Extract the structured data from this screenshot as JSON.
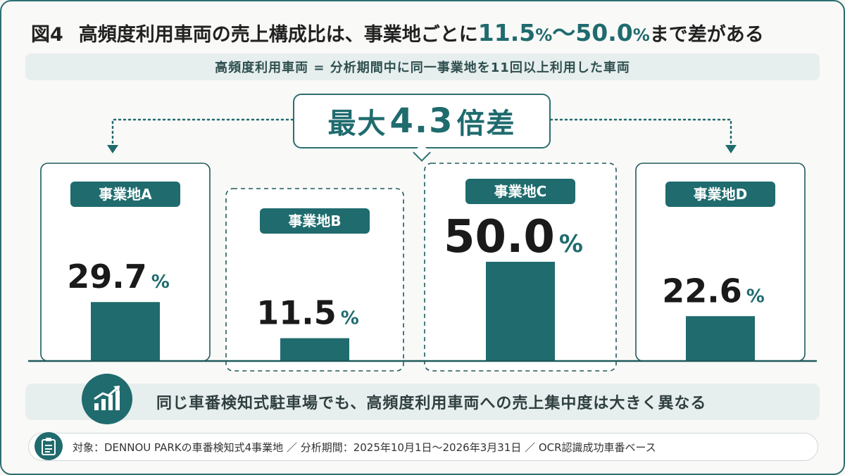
{
  "title": {
    "fig": "図4",
    "text": "高頻度利用車両の売上構成比は、事業地ごとに",
    "min_value": "11.5",
    "min_unit": "%",
    "range_sep": "〜",
    "max_value": "50.0",
    "max_unit": "%",
    "suffix": "まで差がある"
  },
  "subtitle": "高頻度利用車両 = 分析期間中に同一事業地を11回以上利用した車両",
  "callout": {
    "prefix": "最大",
    "value": "4.3",
    "suffix": "倍差"
  },
  "chart_data": {
    "type": "bar",
    "categories": [
      "事業地A",
      "事業地B",
      "事業地C",
      "事業地D"
    ],
    "values": [
      29.7,
      11.5,
      50.0,
      22.6
    ],
    "value_labels": [
      "29.7",
      "11.5",
      "50.0",
      "22.6"
    ],
    "unit": "%",
    "highlighted": [
      "事業地B",
      "事業地C"
    ],
    "colors": {
      "bar": "#1f6b6e",
      "label_bg": "#1f6b6e",
      "accent": "#1f6b6e"
    }
  },
  "summary": {
    "icon": "trending-up-chart-icon",
    "text": "同じ車番検知式駐車場でも、高頻度利用車両への売上集中度は大きく異なる"
  },
  "source": {
    "icon": "clipboard-icon",
    "text": "対象：DENNOU PARKの車番検知式4事業地 ／ 分析期間：2025年10月1日〜2026年3月31日 ／ OCR認識成功車番ベース"
  }
}
